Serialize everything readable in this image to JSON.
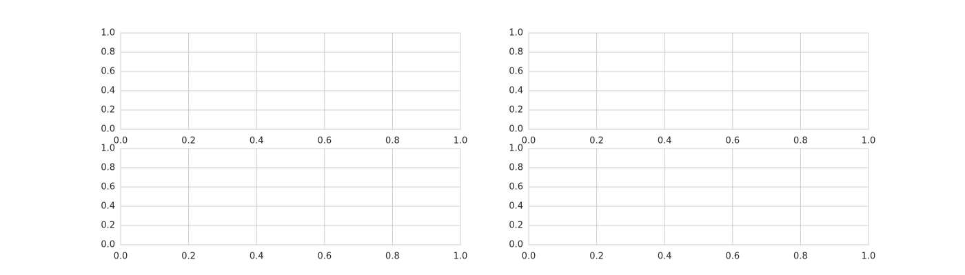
{
  "chart_data": [
    {
      "type": "line",
      "title": "",
      "xlabel": "",
      "ylabel": "",
      "xlim": [
        0,
        1
      ],
      "ylim": [
        0,
        1
      ],
      "xticks": [
        0,
        0.2,
        0.4,
        0.6,
        0.8,
        1
      ],
      "yticks": [
        0,
        0.2,
        0.4,
        0.6,
        0.8,
        1
      ],
      "xtick_labels": [
        "0.0",
        "0.2",
        "0.4",
        "0.6",
        "0.8",
        "1.0"
      ],
      "ytick_labels": [
        "0.0",
        "0.2",
        "0.4",
        "0.6",
        "0.8",
        "1.0"
      ],
      "series": [],
      "grid": true,
      "legend": "none"
    },
    {
      "type": "line",
      "title": "",
      "xlabel": "",
      "ylabel": "",
      "xlim": [
        0,
        1
      ],
      "ylim": [
        0,
        1
      ],
      "xticks": [
        0,
        0.2,
        0.4,
        0.6,
        0.8,
        1
      ],
      "yticks": [
        0,
        0.2,
        0.4,
        0.6,
        0.8,
        1
      ],
      "xtick_labels": [
        "0.0",
        "0.2",
        "0.4",
        "0.6",
        "0.8",
        "1.0"
      ],
      "ytick_labels": [
        "0.0",
        "0.2",
        "0.4",
        "0.6",
        "0.8",
        "1.0"
      ],
      "series": [],
      "grid": true,
      "legend": "none"
    },
    {
      "type": "line",
      "title": "",
      "xlabel": "",
      "ylabel": "",
      "xlim": [
        0,
        1
      ],
      "ylim": [
        0,
        1
      ],
      "xticks": [
        0,
        0.2,
        0.4,
        0.6,
        0.8,
        1
      ],
      "yticks": [
        0,
        0.2,
        0.4,
        0.6,
        0.8,
        1
      ],
      "xtick_labels": [
        "0.0",
        "0.2",
        "0.4",
        "0.6",
        "0.8",
        "1.0"
      ],
      "ytick_labels": [
        "0.0",
        "0.2",
        "0.4",
        "0.6",
        "0.8",
        "1.0"
      ],
      "series": [],
      "grid": true,
      "legend": "none"
    },
    {
      "type": "line",
      "title": "",
      "xlabel": "",
      "ylabel": "",
      "xlim": [
        0,
        1
      ],
      "ylim": [
        0,
        1
      ],
      "xticks": [
        0,
        0.2,
        0.4,
        0.6,
        0.8,
        1
      ],
      "yticks": [
        0,
        0.2,
        0.4,
        0.6,
        0.8,
        1
      ],
      "xtick_labels": [
        "0.0",
        "0.2",
        "0.4",
        "0.6",
        "0.8",
        "1.0"
      ],
      "ytick_labels": [
        "0.0",
        "0.2",
        "0.4",
        "0.6",
        "0.8",
        "1.0"
      ],
      "series": [],
      "grid": true,
      "legend": "none"
    }
  ],
  "colors": {
    "background": "#ffffff",
    "grid": "#cccccc",
    "frame": "#cccccc",
    "tick_text": "#262626"
  }
}
